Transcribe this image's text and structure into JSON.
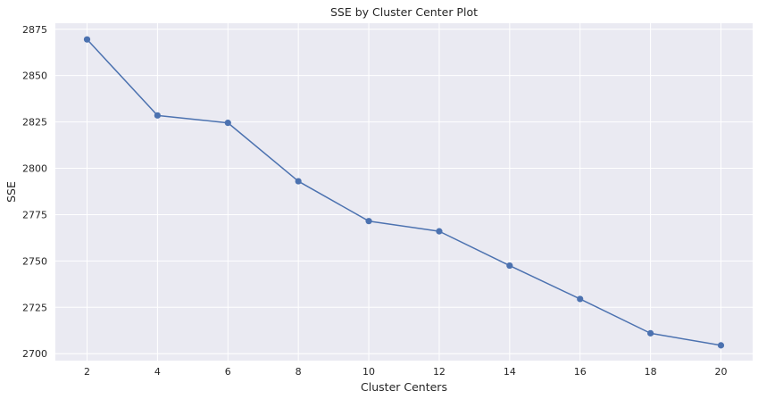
{
  "chart_data": {
    "type": "line",
    "title": "SSE by Cluster Center Plot",
    "xlabel": "Cluster Centers",
    "ylabel": "SSE",
    "x": [
      2,
      4,
      6,
      8,
      10,
      12,
      14,
      16,
      18,
      20
    ],
    "series": [
      {
        "values": [
          2869.5,
          2828.5,
          2824.5,
          2793,
          2771.5,
          2766,
          2747.5,
          2729.5,
          2711,
          2704.5
        ]
      }
    ],
    "x_ticks": [
      2,
      4,
      6,
      8,
      10,
      12,
      14,
      16,
      18,
      20
    ],
    "y_ticks": [
      2700,
      2725,
      2750,
      2775,
      2800,
      2825,
      2850,
      2875
    ],
    "xlim": [
      1.1,
      20.9
    ],
    "ylim": [
      2696.25,
      2878.25
    ],
    "grid": true,
    "marker": "circle",
    "colors": {
      "background": "#eaeaf2",
      "grid": "#ffffff",
      "line": "#4c72b0",
      "text": "#262626"
    }
  }
}
